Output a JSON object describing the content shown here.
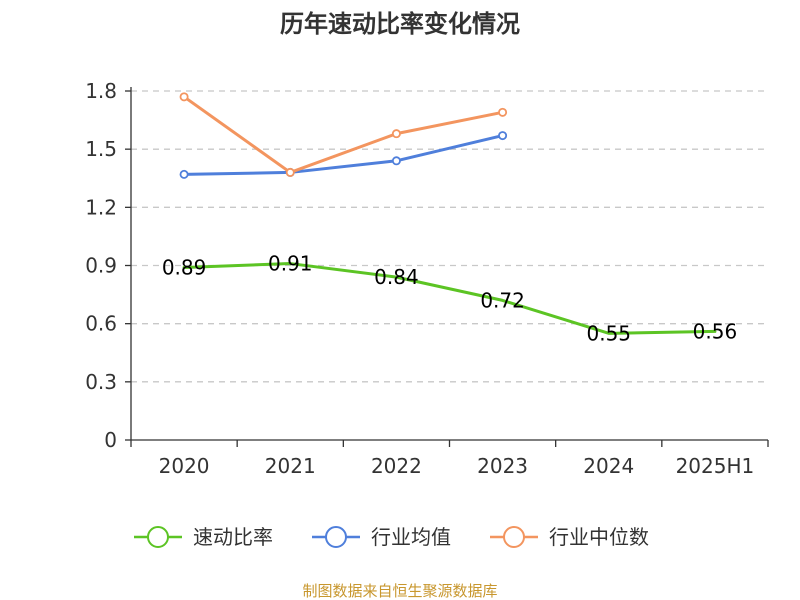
{
  "source_text": "制图数据来自恒生聚源数据库",
  "chart_data": {
    "type": "line",
    "title": "历年速动比率变化情况",
    "xlabel": "",
    "ylabel": "",
    "categories": [
      "2020",
      "2021",
      "2022",
      "2023",
      "2024",
      "2025H1"
    ],
    "ylim": [
      0,
      1.8
    ],
    "yticks": [
      0,
      0.3,
      0.6,
      0.9,
      1.2,
      1.5,
      1.8
    ],
    "ytick_labels": [
      "0",
      "0.3",
      "0.6",
      "0.9",
      "1.2",
      "1.5",
      "1.8"
    ],
    "grid": true,
    "legend_position": "bottom",
    "series": [
      {
        "name": "速动比率",
        "color": "#5cc424",
        "values": [
          0.89,
          0.91,
          0.84,
          0.72,
          0.55,
          0.56
        ],
        "data_labels": [
          "0.89",
          "0.91",
          "0.84",
          "0.72",
          "0.55",
          "0.56"
        ],
        "show_markers": false
      },
      {
        "name": "行业均值",
        "color": "#4f7fdb",
        "values": [
          1.37,
          1.38,
          1.44,
          1.57,
          null,
          null
        ],
        "show_markers": true
      },
      {
        "name": "行业中位数",
        "color": "#f3955f",
        "values": [
          1.77,
          1.38,
          1.58,
          1.69,
          null,
          null
        ],
        "show_markers": true
      }
    ]
  }
}
